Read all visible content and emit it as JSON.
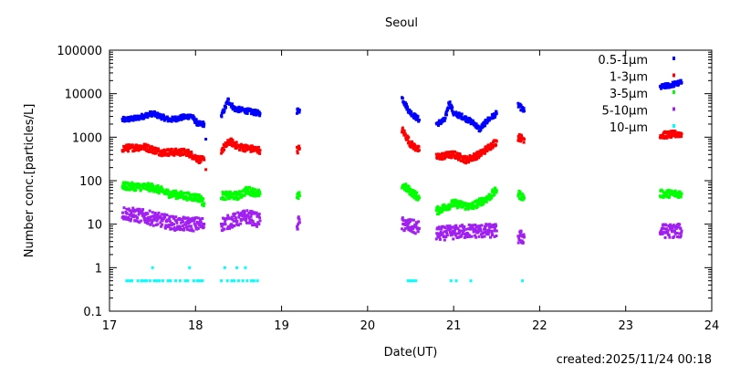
{
  "chart_data": {
    "type": "scatter",
    "title": "Seoul",
    "xlabel": "Date(UT)",
    "ylabel": "Number conc.[particles/L]",
    "footer": "created:2025/11/24 00:18",
    "xlim": [
      17,
      24
    ],
    "ylim": [
      0.1,
      100000
    ],
    "yscale": "log",
    "xticks": [
      "17",
      "18",
      "19",
      "20",
      "21",
      "22",
      "23",
      "24"
    ],
    "yticks": [
      "0.1",
      "1",
      "10",
      "100",
      "1000",
      "10000",
      "100000"
    ],
    "legend_position": "top-right",
    "series": [
      {
        "name": "0.5-1μm",
        "color": "#0000ff",
        "segments": [
          [
            [
              17.15,
              2500
            ],
            [
              17.3,
              2700
            ],
            [
              17.5,
              3500
            ],
            [
              17.7,
              2500
            ],
            [
              17.95,
              3100
            ],
            [
              18.03,
              2000
            ],
            [
              18.1,
              2000
            ]
          ],
          [
            [
              18.12,
              900
            ]
          ],
          [
            [
              18.3,
              3000
            ],
            [
              18.38,
              7000
            ],
            [
              18.45,
              4500
            ],
            [
              18.6,
              4000
            ],
            [
              18.75,
              3500
            ]
          ],
          [
            [
              19.18,
              4000
            ],
            [
              19.21,
              4200
            ]
          ],
          [
            [
              20.4,
              8000
            ],
            [
              20.48,
              4000
            ],
            [
              20.55,
              3000
            ],
            [
              20.6,
              2500
            ]
          ],
          [
            [
              20.8,
              2000
            ],
            [
              20.9,
              2500
            ],
            [
              20.95,
              6500
            ],
            [
              21.0,
              3500
            ],
            [
              21.1,
              3000
            ],
            [
              21.25,
              2000
            ],
            [
              21.3,
              1500
            ],
            [
              21.4,
              2500
            ],
            [
              21.5,
              3500
            ]
          ],
          [
            [
              21.75,
              5500
            ],
            [
              21.82,
              4000
            ]
          ],
          [
            [
              23.4,
              14000
            ],
            [
              23.65,
              18000
            ]
          ]
        ]
      },
      {
        "name": "1-3μm",
        "color": "#ff0000",
        "segments": [
          [
            [
              17.15,
              550
            ],
            [
              17.4,
              600
            ],
            [
              17.6,
              450
            ],
            [
              17.9,
              450
            ],
            [
              18.05,
              300
            ],
            [
              18.1,
              300
            ]
          ],
          [
            [
              18.12,
              180
            ]
          ],
          [
            [
              18.3,
              500
            ],
            [
              18.4,
              800
            ],
            [
              18.5,
              600
            ],
            [
              18.75,
              500
            ]
          ],
          [
            [
              19.18,
              500
            ],
            [
              19.21,
              550
            ]
          ],
          [
            [
              20.4,
              1500
            ],
            [
              20.5,
              700
            ],
            [
              20.6,
              500
            ]
          ],
          [
            [
              20.8,
              350
            ],
            [
              21.0,
              400
            ],
            [
              21.15,
              300
            ],
            [
              21.3,
              400
            ],
            [
              21.5,
              800
            ]
          ],
          [
            [
              21.75,
              1000
            ],
            [
              21.82,
              900
            ]
          ],
          [
            [
              23.4,
              1100
            ],
            [
              23.65,
              1200
            ]
          ]
        ]
      },
      {
        "name": "3-5μm",
        "color": "#00ff00",
        "segments": [
          [
            [
              17.15,
              75
            ],
            [
              17.5,
              70
            ],
            [
              17.7,
              50
            ],
            [
              18.05,
              40
            ],
            [
              18.1,
              30
            ]
          ],
          [
            [
              18.3,
              45
            ],
            [
              18.5,
              45
            ],
            [
              18.6,
              60
            ],
            [
              18.75,
              50
            ]
          ],
          [
            [
              19.18,
              40
            ],
            [
              19.21,
              45
            ]
          ],
          [
            [
              20.4,
              80
            ],
            [
              20.6,
              40
            ]
          ],
          [
            [
              20.8,
              20
            ],
            [
              21.0,
              30
            ],
            [
              21.2,
              25
            ],
            [
              21.4,
              40
            ],
            [
              21.5,
              60
            ]
          ],
          [
            [
              21.75,
              50
            ],
            [
              21.82,
              40
            ]
          ],
          [
            [
              23.4,
              50
            ],
            [
              23.65,
              50
            ]
          ]
        ]
      },
      {
        "name": "5-10μm",
        "color": "#a020f0",
        "segments": [
          [
            [
              17.15,
              18
            ],
            [
              17.4,
              15
            ],
            [
              17.8,
              10
            ],
            [
              18.1,
              10
            ]
          ],
          [
            [
              18.3,
              10
            ],
            [
              18.6,
              15
            ],
            [
              18.75,
              12
            ]
          ],
          [
            [
              19.18,
              10
            ],
            [
              19.21,
              11
            ]
          ],
          [
            [
              20.4,
              10
            ],
            [
              20.6,
              8
            ]
          ],
          [
            [
              20.8,
              6
            ],
            [
              21.2,
              7
            ],
            [
              21.5,
              7
            ]
          ],
          [
            [
              21.75,
              5
            ],
            [
              21.82,
              5
            ]
          ],
          [
            [
              23.4,
              7
            ],
            [
              23.65,
              7
            ]
          ]
        ]
      },
      {
        "name": "10-μm",
        "color": "#00ffff",
        "points": [
          [
            17.2,
            0.5
          ],
          [
            17.23,
            0.5
          ],
          [
            17.26,
            0.5
          ],
          [
            17.33,
            0.5
          ],
          [
            17.37,
            0.5
          ],
          [
            17.4,
            0.5
          ],
          [
            17.43,
            0.5
          ],
          [
            17.47,
            0.5
          ],
          [
            17.5,
            1
          ],
          [
            17.52,
            0.5
          ],
          [
            17.55,
            0.5
          ],
          [
            17.58,
            0.5
          ],
          [
            17.62,
            0.5
          ],
          [
            17.68,
            0.5
          ],
          [
            17.71,
            0.5
          ],
          [
            17.77,
            0.5
          ],
          [
            17.82,
            0.5
          ],
          [
            17.88,
            0.5
          ],
          [
            17.91,
            0.5
          ],
          [
            17.93,
            1
          ],
          [
            17.98,
            0.5
          ],
          [
            18.02,
            0.5
          ],
          [
            18.05,
            0.5
          ],
          [
            18.08,
            0.5
          ],
          [
            18.3,
            0.5
          ],
          [
            18.34,
            1
          ],
          [
            18.37,
            0.5
          ],
          [
            18.42,
            0.5
          ],
          [
            18.45,
            0.5
          ],
          [
            18.48,
            1
          ],
          [
            18.5,
            0.5
          ],
          [
            18.55,
            0.5
          ],
          [
            18.58,
            1
          ],
          [
            18.6,
            0.5
          ],
          [
            18.65,
            0.5
          ],
          [
            18.68,
            0.5
          ],
          [
            18.72,
            0.5
          ],
          [
            20.47,
            0.5
          ],
          [
            20.5,
            0.5
          ],
          [
            20.53,
            0.5
          ],
          [
            20.56,
            0.5
          ],
          [
            20.97,
            0.5
          ],
          [
            21.03,
            0.5
          ],
          [
            21.2,
            0.5
          ],
          [
            21.8,
            0.5
          ]
        ]
      }
    ]
  }
}
